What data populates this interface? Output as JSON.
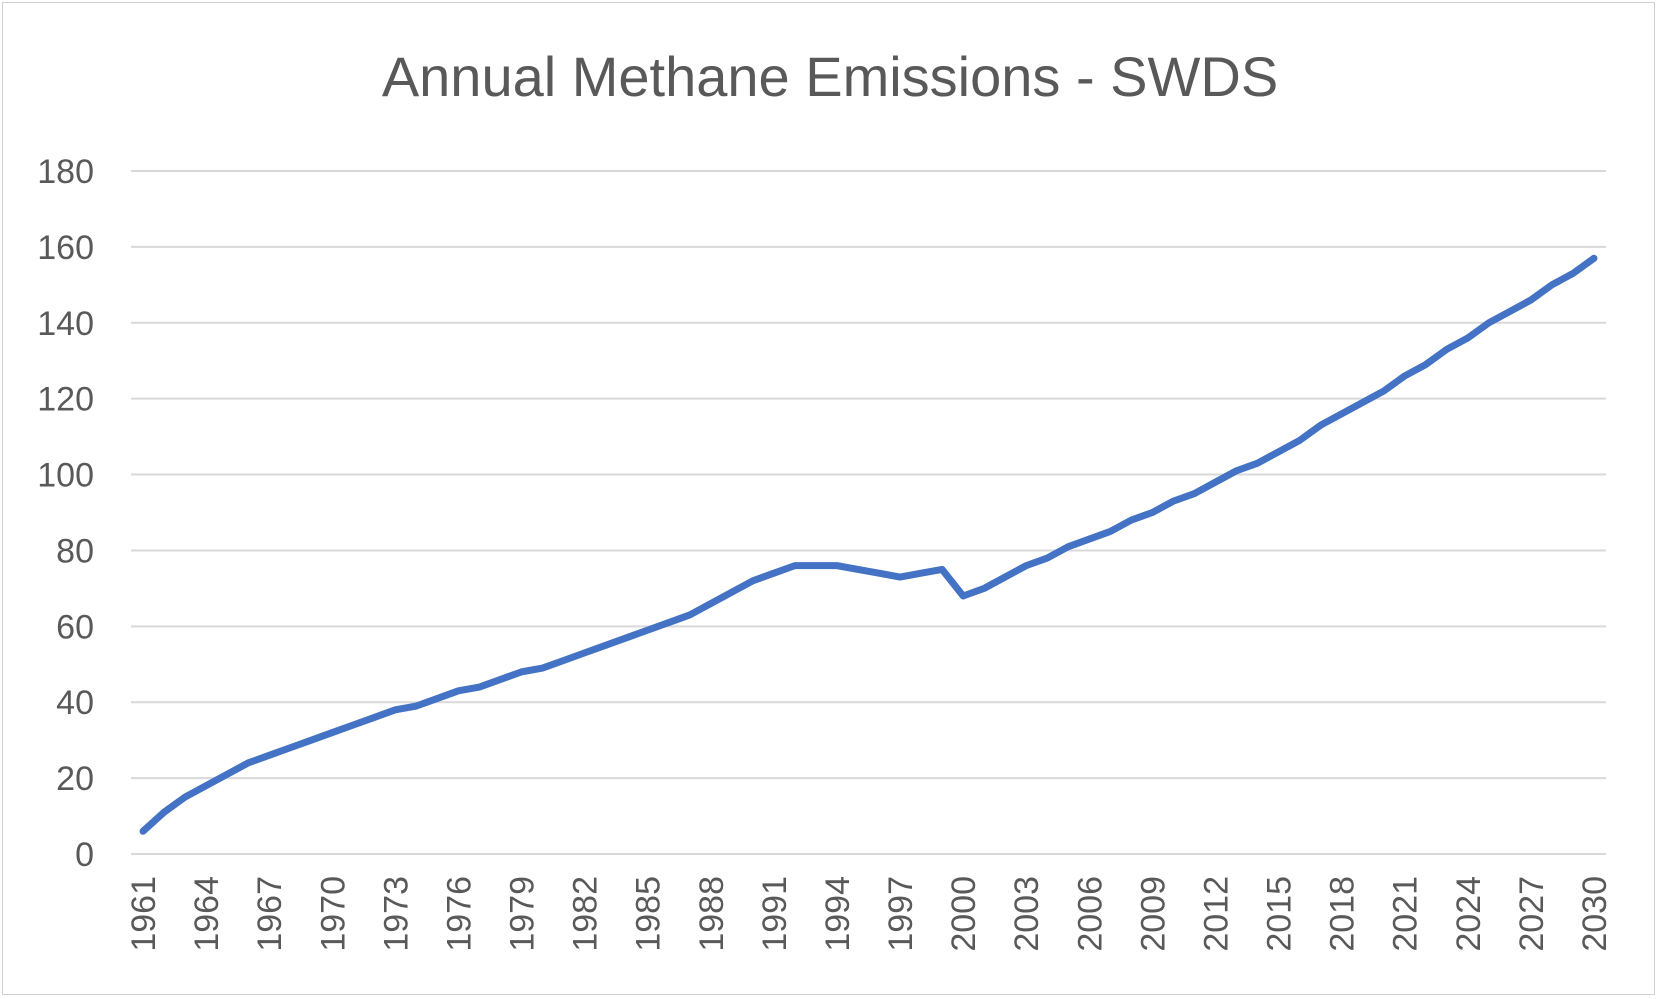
{
  "chart_data": {
    "type": "line",
    "title": "Annual Methane Emissions - SWDS",
    "xlabel": "",
    "ylabel": "",
    "ylim": [
      0,
      180
    ],
    "xlim": [
      1961,
      2030
    ],
    "yticks": [
      "0",
      "20",
      "40",
      "60",
      "80",
      "100",
      "120",
      "140",
      "160",
      "180"
    ],
    "xticks": [
      "1961",
      "1964",
      "1967",
      "1970",
      "1973",
      "1976",
      "1979",
      "1982",
      "1985",
      "1988",
      "1991",
      "1994",
      "1997",
      "2000",
      "2003",
      "2006",
      "2009",
      "2012",
      "2015",
      "2018",
      "2021",
      "2024",
      "2027",
      "2030"
    ],
    "grid": true,
    "legend": "none",
    "color": "#4472C4",
    "series": [
      {
        "x": [
          1961,
          1962,
          1963,
          1964,
          1965,
          1966,
          1967,
          1968,
          1969,
          1970,
          1971,
          1972,
          1973,
          1974,
          1975,
          1976,
          1977,
          1978,
          1979,
          1980,
          1981,
          1982,
          1983,
          1984,
          1985,
          1986,
          1987,
          1988,
          1989,
          1990,
          1991,
          1992,
          1993,
          1994,
          1995,
          1996,
          1997,
          1998,
          1999,
          2000,
          2001,
          2002,
          2003,
          2004,
          2005,
          2006,
          2007,
          2008,
          2009,
          2010,
          2011,
          2012,
          2013,
          2014,
          2015,
          2016,
          2017,
          2018,
          2019,
          2020,
          2021,
          2022,
          2023,
          2024,
          2025,
          2026,
          2027,
          2028,
          2029,
          2030
        ],
        "values": [
          6,
          11,
          15,
          18,
          21,
          24,
          26,
          28,
          30,
          32,
          34,
          36,
          38,
          39,
          41,
          43,
          44,
          46,
          48,
          49,
          51,
          53,
          55,
          57,
          59,
          61,
          63,
          66,
          69,
          72,
          74,
          76,
          76,
          76,
          75,
          74,
          73,
          74,
          75,
          68,
          70,
          73,
          76,
          78,
          81,
          83,
          85,
          88,
          90,
          93,
          95,
          98,
          101,
          103,
          106,
          109,
          113,
          116,
          119,
          122,
          126,
          129,
          133,
          136,
          140,
          143,
          146,
          150,
          153,
          157
        ]
      }
    ]
  }
}
